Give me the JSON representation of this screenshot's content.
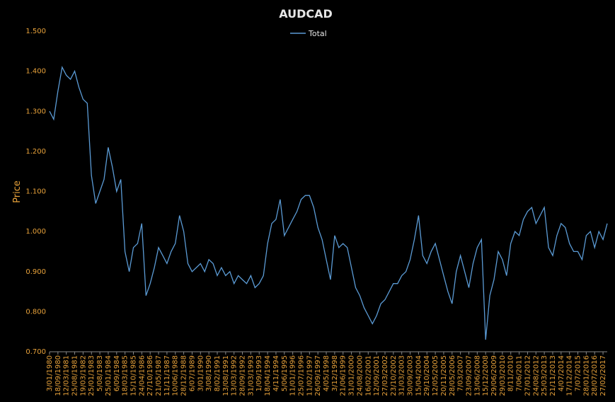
{
  "chart_data": {
    "type": "line",
    "title": "AUDCAD",
    "y_label": "Price",
    "categories": [
      "3/01/1980",
      null,
      "18/09/1980",
      null,
      "12/03/1981",
      null,
      "25/08/1981",
      null,
      "19/03/1982",
      null,
      "25/01/1983",
      null,
      "5/08/1983",
      null,
      "25/01/1984",
      null,
      "6/09/1984",
      null,
      "18/03/1985",
      null,
      "15/10/1985",
      null,
      "24/04/1986",
      null,
      "27/10/1986",
      null,
      "21/05/1987",
      null,
      "11/11/1987",
      null,
      "10/06/1988",
      null,
      "28/12/1988",
      null,
      "6/07/1989",
      null,
      "3/01/1990",
      null,
      "3/08/1990",
      null,
      "8/02/1991",
      null,
      "13/08/1991",
      null,
      "13/03/1992",
      null,
      "28/09/1992",
      null,
      "31/03/1993",
      null,
      "1/09/1993",
      null,
      "18/04/1994",
      null,
      "4/11/1994",
      null,
      "5/06/1995",
      null,
      "11/01/1996",
      null,
      "25/07/1996",
      null,
      "11/02/1997",
      null,
      "26/09/1997",
      null,
      "4/05/1998",
      null,
      "3/12/1998",
      null,
      "21/06/1999",
      null,
      "31/01/2000",
      null,
      "24/08/2000",
      null,
      "16/02/2001",
      null,
      "12/09/2001",
      null,
      "27/03/2002",
      null,
      "23/10/2002",
      null,
      "31/03/2003",
      null,
      "30/09/2003",
      null,
      "15/04/2004",
      null,
      "29/10/2004",
      null,
      "12/05/2005",
      null,
      "20/11/2005",
      null,
      "28/05/2006",
      null,
      "7/03/2007",
      null,
      "23/09/2007",
      null,
      "13/06/2008",
      null,
      "15/12/2008",
      null,
      "29/06/2009",
      null,
      "29/03/2010",
      null,
      "8/11/2010",
      null,
      "7/06/2011",
      null,
      "27/01/2012",
      null,
      "24/08/2012",
      null,
      "25/03/2013",
      null,
      "21/11/2013",
      null,
      "4/07/2014",
      null,
      "17/12/2014",
      null,
      "7/07/2015",
      null,
      "28/01/2016",
      null,
      "28/07/2016",
      null,
      "27/02/2017",
      null
    ],
    "series": [
      {
        "name": "Total",
        "color": "#5b9bd5",
        "values": [
          1.3,
          1.28,
          1.35,
          1.41,
          1.39,
          1.38,
          1.4,
          1.36,
          1.33,
          1.32,
          1.14,
          1.07,
          1.1,
          1.13,
          1.21,
          1.16,
          1.1,
          1.13,
          0.95,
          0.9,
          0.96,
          0.97,
          1.02,
          0.84,
          0.87,
          0.91,
          0.96,
          0.94,
          0.92,
          0.95,
          0.97,
          1.04,
          1.0,
          0.92,
          0.9,
          0.91,
          0.92,
          0.9,
          0.93,
          0.92,
          0.89,
          0.91,
          0.89,
          0.9,
          0.87,
          0.89,
          0.88,
          0.87,
          0.89,
          0.86,
          0.87,
          0.89,
          0.97,
          1.02,
          1.03,
          1.08,
          0.99,
          1.01,
          1.03,
          1.05,
          1.08,
          1.09,
          1.09,
          1.06,
          1.01,
          0.98,
          0.93,
          0.88,
          0.99,
          0.96,
          0.97,
          0.96,
          0.91,
          0.86,
          0.84,
          0.81,
          0.79,
          0.77,
          0.79,
          0.82,
          0.83,
          0.85,
          0.87,
          0.87,
          0.89,
          0.9,
          0.93,
          0.98,
          1.04,
          0.94,
          0.92,
          0.95,
          0.97,
          0.93,
          0.89,
          0.85,
          0.82,
          0.9,
          0.94,
          0.9,
          0.86,
          0.92,
          0.96,
          0.98,
          0.73,
          0.84,
          0.88,
          0.95,
          0.93,
          0.89,
          0.97,
          1.0,
          0.99,
          1.03,
          1.05,
          1.06,
          1.02,
          1.04,
          1.06,
          0.96,
          0.94,
          0.99,
          1.02,
          1.01,
          0.97,
          0.95,
          0.95,
          0.93,
          0.99,
          1.0,
          0.96,
          1.0,
          0.98,
          1.02
        ]
      }
    ],
    "ylim": [
      0.7,
      1.5
    ],
    "yticks": [
      {
        "value": 0.7,
        "label": "0.700"
      },
      {
        "value": 0.8,
        "label": "0.800"
      },
      {
        "value": 0.9,
        "label": "0.900"
      },
      {
        "value": 1.0,
        "label": "1.000"
      },
      {
        "value": 1.1,
        "label": "1.100"
      },
      {
        "value": 1.2,
        "label": "1.200"
      },
      {
        "value": 1.3,
        "label": "1.300"
      },
      {
        "value": 1.4,
        "label": "1.400"
      },
      {
        "value": 1.5,
        "label": "1.500"
      }
    ],
    "legend": "top"
  }
}
